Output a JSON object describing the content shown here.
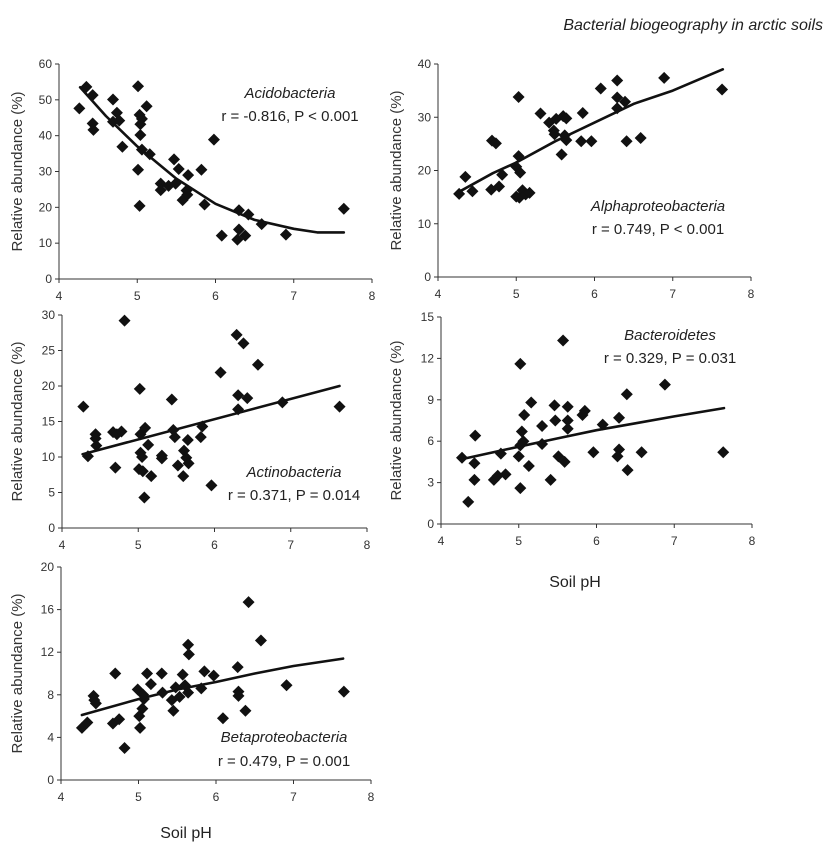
{
  "title": "Bacterial biogeography in arctic soils",
  "chart_data": [
    {
      "type": "scatter",
      "taxon": "Acidobacteria",
      "stat": "r = -0.816, P < 0.001",
      "xlabel": "",
      "ylabel": "Relative abundance (%)",
      "xlim": [
        4,
        8
      ],
      "ylim": [
        0,
        60
      ],
      "xticks": [
        "4",
        "5",
        "6",
        "7",
        "8"
      ],
      "yticks": [
        "0",
        "10",
        "20",
        "30",
        "40",
        "50",
        "60"
      ],
      "x": [
        4.26,
        4.35,
        4.43,
        4.43,
        4.44,
        4.69,
        4.74,
        4.69,
        4.77,
        4.81,
        5.01,
        5.01,
        5.03,
        5.03,
        5.06,
        5.04,
        5.04,
        5.06,
        5.12,
        5.16,
        5.3,
        5.3,
        5.4,
        5.47,
        5.49,
        5.53,
        5.58,
        5.63,
        5.65,
        5.64,
        5.82,
        5.86,
        5.98,
        6.08,
        6.3,
        6.3,
        6.28,
        6.38,
        6.42,
        6.59,
        6.9,
        7.64
      ],
      "y": [
        47.6,
        53.6,
        51.3,
        43.4,
        41.6,
        50.1,
        46.4,
        43.9,
        44.2,
        36.9,
        53.8,
        30.5,
        20.4,
        45.8,
        44.7,
        43.2,
        40.2,
        36.1,
        48.2,
        34.8,
        26.6,
        24.8,
        26.0,
        33.4,
        26.6,
        30.7,
        22.0,
        24.7,
        29.0,
        23.5,
        30.5,
        20.8,
        38.9,
        12.1,
        19.2,
        13.8,
        11.0,
        12.1,
        18.0,
        15.3,
        12.4,
        19.6
      ],
      "trend": {
        "x": [
          4.27,
          4.6,
          5.0,
          5.5,
          6.0,
          6.5,
          7.0,
          7.3,
          7.64
        ],
        "y": [
          53.5,
          45.5,
          37,
          28,
          21,
          16.5,
          14,
          13,
          13
        ]
      },
      "annotation_position": "top-right"
    },
    {
      "type": "scatter",
      "taxon": "Alphaproteobacteria",
      "stat": "r = 0.749, P < 0.001",
      "xlabel": "",
      "ylabel": "Relative abundance (%)",
      "xlim": [
        4,
        8
      ],
      "ylim": [
        0,
        40
      ],
      "xticks": [
        "4",
        "5",
        "6",
        "7",
        "8"
      ],
      "yticks": [
        "0",
        "10",
        "20",
        "30",
        "40"
      ],
      "x": [
        4.27,
        4.35,
        4.44,
        4.69,
        4.74,
        4.68,
        4.78,
        4.82,
        5.03,
        5.03,
        5.0,
        5.05,
        5.0,
        5.04,
        5.08,
        5.12,
        5.17,
        5.31,
        5.42,
        5.48,
        5.49,
        5.51,
        5.58,
        5.6,
        5.64,
        5.62,
        5.64,
        5.83,
        5.85,
        5.96,
        6.08,
        6.29,
        6.29,
        6.29,
        6.39,
        6.41,
        6.59,
        6.89,
        7.63
      ],
      "y": [
        15.6,
        18.8,
        16.1,
        25.6,
        25.1,
        16.4,
        17.0,
        19.2,
        33.8,
        22.7,
        20.7,
        19.6,
        15.1,
        14.9,
        16.3,
        15.5,
        15.8,
        30.7,
        29.0,
        27.5,
        26.8,
        29.7,
        23.0,
        30.2,
        29.8,
        26.6,
        25.7,
        25.5,
        30.8,
        25.5,
        35.4,
        31.7,
        36.9,
        33.7,
        32.9,
        25.5,
        26.1,
        37.4,
        35.2
      ],
      "trend": {
        "x": [
          4.27,
          4.7,
          5.0,
          5.5,
          6.0,
          6.5,
          7.0,
          7.64
        ],
        "y": [
          16,
          19.5,
          21.5,
          25.5,
          29,
          32.5,
          35,
          39
        ]
      },
      "annotation_position": "bottom-right"
    },
    {
      "type": "scatter",
      "taxon": "Actinobacteria",
      "stat": "r = 0.371, P = 0.014",
      "xlabel": "",
      "ylabel": "Relative abundance (%)",
      "xlim": [
        4,
        8
      ],
      "ylim": [
        0,
        30
      ],
      "xticks": [
        "4",
        "5",
        "6",
        "7",
        "8"
      ],
      "yticks": [
        "0",
        "5",
        "10",
        "15",
        "20",
        "25",
        "30"
      ],
      "x": [
        4.28,
        4.34,
        4.44,
        4.44,
        4.45,
        4.82,
        4.67,
        4.72,
        4.78,
        4.7,
        5.02,
        5.03,
        5.09,
        5.03,
        5.05,
        5.01,
        5.06,
        5.08,
        5.13,
        5.17,
        5.31,
        5.31,
        5.44,
        5.48,
        5.46,
        5.52,
        5.59,
        5.6,
        5.63,
        5.66,
        5.65,
        5.82,
        5.84,
        5.96,
        6.08,
        6.29,
        6.31,
        6.31,
        6.38,
        6.43,
        6.57,
        6.89,
        7.64
      ],
      "y": [
        17.1,
        10.1,
        13.2,
        12.6,
        11.6,
        29.2,
        13.5,
        13.2,
        13.6,
        8.5,
        19.6,
        13.2,
        14.1,
        10.6,
        10.0,
        8.3,
        8.0,
        4.3,
        11.7,
        7.3,
        10.2,
        9.8,
        18.1,
        12.8,
        13.8,
        8.8,
        7.3,
        10.9,
        9.9,
        9.1,
        12.4,
        12.8,
        14.3,
        6.0,
        21.9,
        27.2,
        18.7,
        16.7,
        26.0,
        18.3,
        23.0,
        17.7,
        17.1
      ],
      "trend": {
        "x": [
          4.27,
          7.64
        ],
        "y": [
          10.4,
          20.0
        ]
      },
      "annotation_position": "bottom-right"
    },
    {
      "type": "scatter",
      "taxon": "Bacteroidetes",
      "stat": "r = 0.329, P = 0.031",
      "xlabel": "Soil pH",
      "ylabel": "Relative abundance (%)",
      "xlim": [
        4,
        8
      ],
      "ylim": [
        0,
        15
      ],
      "xticks": [
        "4",
        "5",
        "6",
        "7",
        "8"
      ],
      "yticks": [
        "0",
        "3",
        "6",
        "9",
        "12",
        "15"
      ],
      "x": [
        4.27,
        4.35,
        4.44,
        4.43,
        4.43,
        4.68,
        4.73,
        4.83,
        4.77,
        5.02,
        5.02,
        5.0,
        5.02,
        5.04,
        5.07,
        5.06,
        5.13,
        5.16,
        5.3,
        5.3,
        5.41,
        5.46,
        5.47,
        5.51,
        5.57,
        5.59,
        5.63,
        5.63,
        5.63,
        5.82,
        5.85,
        5.96,
        6.08,
        6.29,
        6.29,
        6.27,
        6.39,
        6.4,
        6.58,
        6.88,
        7.63
      ],
      "y": [
        4.8,
        1.6,
        6.4,
        4.4,
        3.2,
        3.2,
        3.5,
        3.6,
        5.1,
        11.6,
        2.6,
        4.9,
        5.7,
        6.7,
        7.9,
        6.0,
        4.2,
        8.8,
        7.1,
        5.8,
        3.2,
        8.6,
        7.5,
        4.9,
        13.3,
        4.5,
        8.5,
        7.5,
        6.9,
        7.9,
        8.2,
        5.2,
        7.2,
        7.7,
        5.4,
        4.9,
        9.4,
        3.9,
        5.2,
        10.1,
        5.2
      ],
      "trend": {
        "x": [
          4.27,
          5.0,
          5.5,
          6.0,
          6.5,
          7.0,
          7.64
        ],
        "y": [
          4.7,
          5.6,
          6.2,
          6.8,
          7.3,
          7.8,
          8.4
        ]
      },
      "annotation_position": "top-right"
    },
    {
      "type": "scatter",
      "taxon": "Betaproteobacteria",
      "stat": "r = 0.479, P = 0.001",
      "xlabel": "Soil pH",
      "ylabel": "Relative abundance (%)",
      "xlim": [
        4,
        8
      ],
      "ylim": [
        0,
        20
      ],
      "xticks": [
        "4",
        "5",
        "6",
        "7",
        "8"
      ],
      "yticks": [
        "0",
        "4",
        "8",
        "12",
        "16",
        "20"
      ],
      "x": [
        4.27,
        4.34,
        4.42,
        4.43,
        4.45,
        4.67,
        4.75,
        4.7,
        4.82,
        4.99,
        5.01,
        5.02,
        5.05,
        5.07,
        5.06,
        5.11,
        5.16,
        5.3,
        5.31,
        5.43,
        5.45,
        5.48,
        5.53,
        5.57,
        5.6,
        5.64,
        5.65,
        5.64,
        5.81,
        5.85,
        5.97,
        6.09,
        6.28,
        6.29,
        6.29,
        6.38,
        6.42,
        6.58,
        6.91,
        7.65
      ],
      "y": [
        4.9,
        5.4,
        7.9,
        7.5,
        7.2,
        5.3,
        5.7,
        10.0,
        3.0,
        8.5,
        6.0,
        4.9,
        6.7,
        7.6,
        8.0,
        10.0,
        9.0,
        10.0,
        8.2,
        7.5,
        6.5,
        8.7,
        7.8,
        9.9,
        8.9,
        12.7,
        11.8,
        8.2,
        8.6,
        10.2,
        9.8,
        5.8,
        10.6,
        8.3,
        7.9,
        6.5,
        16.7,
        13.1,
        8.9,
        8.3
      ],
      "trend": {
        "x": [
          4.27,
          5.0,
          5.5,
          6.0,
          6.5,
          7.0,
          7.64
        ],
        "y": [
          6.1,
          7.6,
          8.5,
          9.2,
          10.0,
          10.7,
          11.4
        ]
      },
      "annotation_position": "bottom-right"
    }
  ]
}
